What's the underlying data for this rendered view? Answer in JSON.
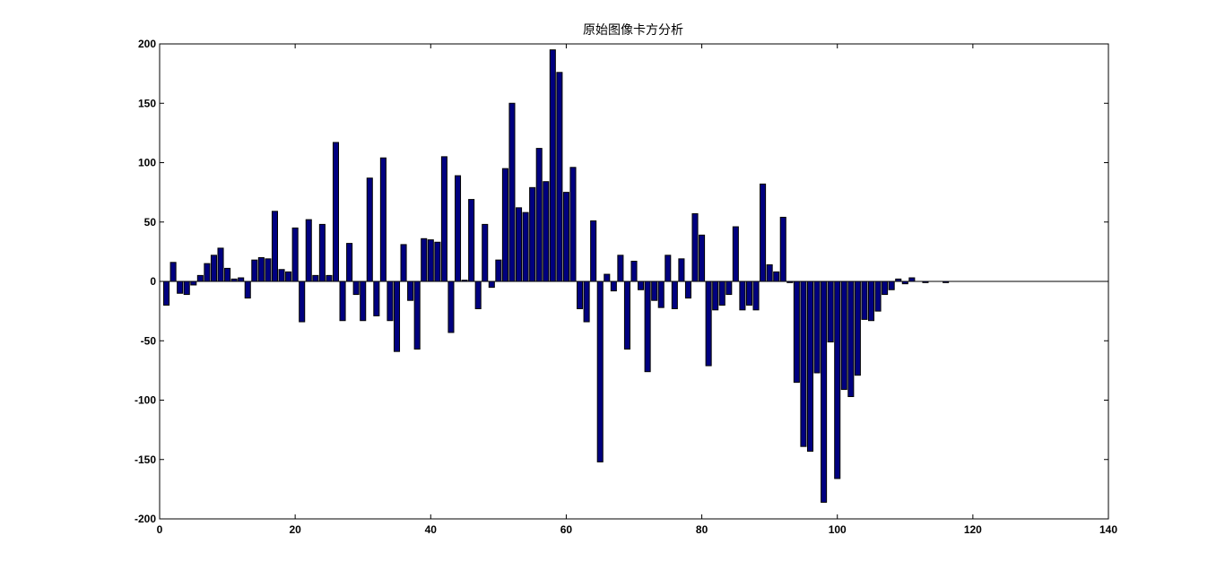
{
  "chart_data": {
    "type": "bar",
    "title": "原始图像卡方分析",
    "xlabel": "",
    "ylabel": "",
    "xlim": [
      0,
      140
    ],
    "ylim": [
      -200,
      200
    ],
    "xticks": [
      0,
      20,
      40,
      60,
      80,
      100,
      120,
      140
    ],
    "yticks": [
      -200,
      -150,
      -100,
      -50,
      0,
      50,
      100,
      150,
      200
    ],
    "xtick_labels": [
      "0",
      "20",
      "40",
      "60",
      "80",
      "100",
      "120",
      "140"
    ],
    "ytick_labels": [
      "-200",
      "-150",
      "-100",
      "-50",
      "0",
      "50",
      "100",
      "150",
      "200"
    ],
    "grid": false,
    "bar_color": "#000080",
    "bar_edge_color": "#000000",
    "baseline_color": "#000000",
    "x": [
      1,
      2,
      3,
      4,
      5,
      6,
      7,
      8,
      9,
      10,
      11,
      12,
      13,
      14,
      15,
      16,
      17,
      18,
      19,
      20,
      21,
      22,
      23,
      24,
      25,
      26,
      27,
      28,
      29,
      30,
      31,
      32,
      33,
      34,
      35,
      36,
      37,
      38,
      39,
      40,
      41,
      42,
      43,
      44,
      45,
      46,
      47,
      48,
      49,
      50,
      51,
      52,
      53,
      54,
      55,
      56,
      57,
      58,
      59,
      60,
      61,
      62,
      63,
      64,
      65,
      66,
      67,
      68,
      69,
      70,
      71,
      72,
      73,
      74,
      75,
      76,
      77,
      78,
      79,
      80,
      81,
      82,
      83,
      84,
      85,
      86,
      87,
      88,
      89,
      90,
      91,
      92,
      93,
      94,
      95,
      96,
      97,
      98,
      99,
      100,
      101,
      102,
      103,
      104,
      105,
      106,
      107,
      108,
      109,
      110,
      111,
      112,
      113,
      114,
      115,
      116,
      117,
      118,
      119,
      120,
      121,
      122,
      123,
      124,
      125,
      126,
      127,
      128,
      129,
      130,
      131,
      132,
      133,
      134,
      135,
      136,
      137,
      138,
      139,
      140
    ],
    "values": [
      -20,
      16,
      -10,
      -11,
      -3,
      5,
      15,
      22,
      28,
      11,
      2,
      3,
      -14,
      18,
      20,
      19,
      59,
      10,
      8,
      45,
      -34,
      52,
      5,
      48,
      5,
      117,
      -33,
      32,
      -11,
      -33,
      87,
      -29,
      104,
      -33,
      -59,
      31,
      -16,
      -57,
      36,
      35,
      33,
      105,
      -43,
      89,
      1,
      69,
      -23,
      48,
      -5,
      18,
      95,
      150,
      62,
      58,
      79,
      112,
      84,
      195,
      176,
      75,
      96,
      -23,
      -34,
      51,
      -152,
      6,
      -8,
      22,
      -57,
      17,
      -7,
      -76,
      -16,
      -22,
      22,
      -23,
      19,
      -14,
      57,
      39,
      -71,
      -24,
      -20,
      -11,
      46,
      -24,
      -20,
      -24,
      82,
      14,
      8,
      54,
      -1,
      -85,
      -139,
      -143,
      -77,
      -186,
      -51,
      -166,
      -91,
      -97,
      -79,
      -32,
      -33,
      -25,
      -11,
      -7,
      2,
      -2,
      3,
      0,
      -1,
      0,
      0,
      -1,
      0,
      0,
      0,
      0,
      0,
      0,
      0,
      0,
      0,
      0,
      0,
      0,
      0,
      0,
      0,
      0,
      0,
      0,
      0,
      0,
      0,
      0,
      0,
      0
    ]
  }
}
